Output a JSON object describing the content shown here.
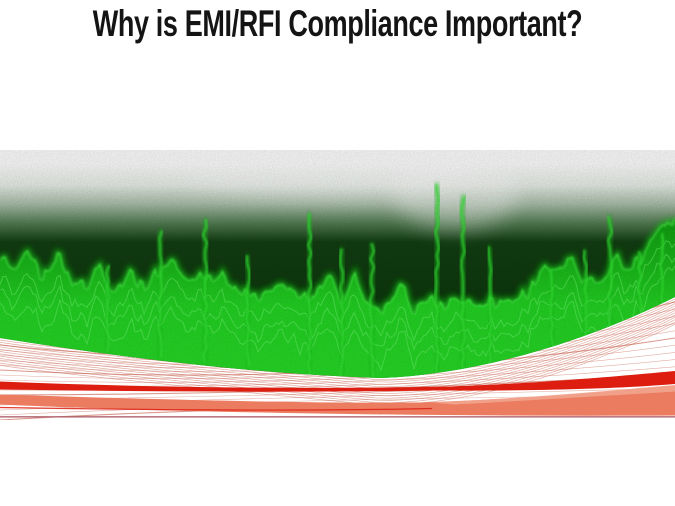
{
  "slide": {
    "title": "Why is EMI/RFI Compliance Important?"
  },
  "graphic": {
    "name": "emi-rfi-noise-banner",
    "alt": "Green EMI noise waveform fading from white into dark green, with red and coral swoosh curves sweeping below",
    "colors": {
      "title_text": "#141414",
      "background": "#ffffff",
      "noise_field_dark": "#0c370c",
      "trace_bright_green": "#2ce42c",
      "trace_edge_green": "#49f349",
      "trace_glow_green": "#12c212",
      "swoosh_hairline": "#c0523e",
      "swoosh_red": "#dd1d0f",
      "swoosh_coral": "#ec7c60",
      "swoosh_coral_light": "#f2a48e",
      "baseline_maroon": "#ac5a66"
    }
  }
}
